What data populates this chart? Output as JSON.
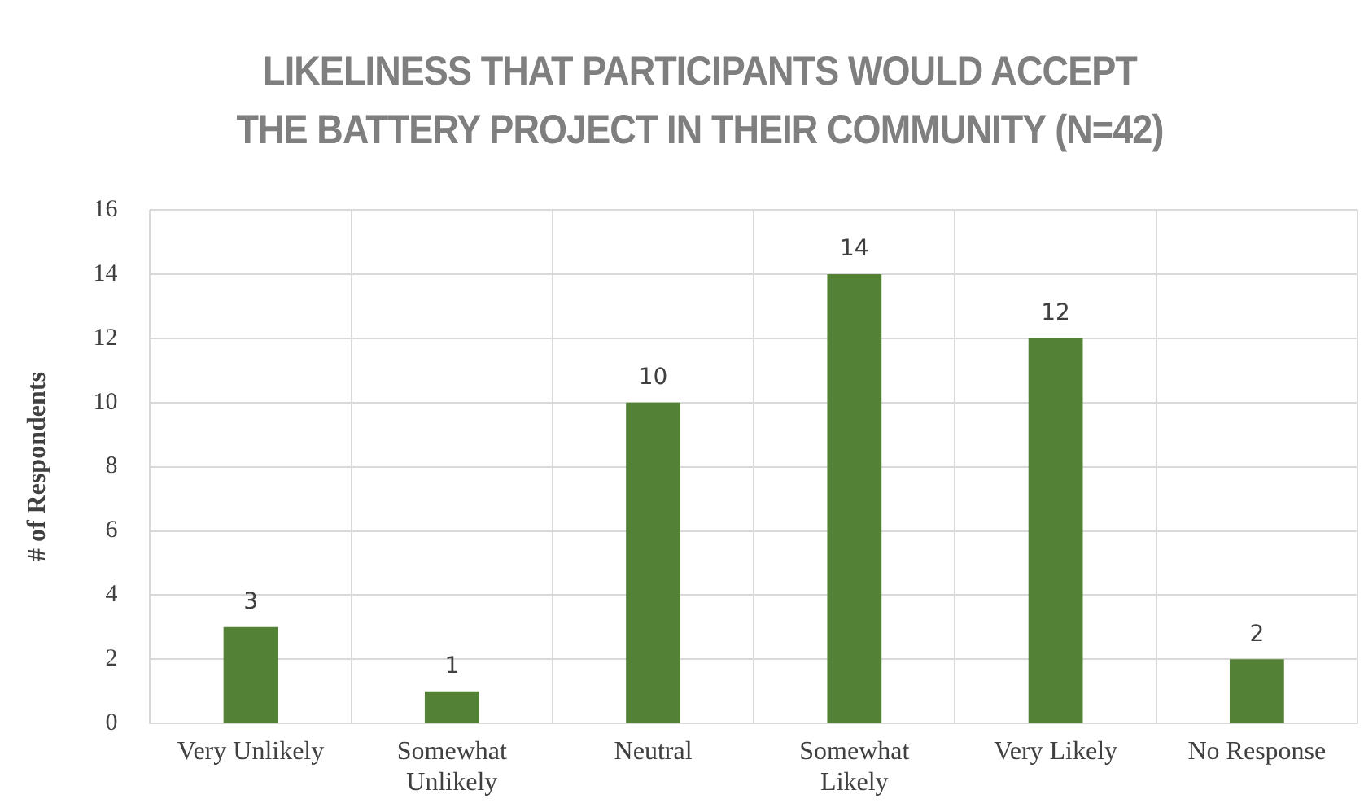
{
  "chart_data": {
    "type": "bar",
    "title": "LIKELINESS THAT PARTICIPANTS WOULD ACCEPT THE BATTERY PROJECT IN THEIR COMMUNITY (N=42)",
    "ylabel": "# of Respondents",
    "categories": [
      "Very Unlikely",
      "Somewhat Unlikely",
      "Neutral",
      "Somewhat Likely",
      "Very Likely",
      "No Response"
    ],
    "values": [
      3,
      1,
      10,
      14,
      12,
      2
    ],
    "color": "#538135",
    "ylim": [
      0,
      16
    ],
    "yticks": [
      0,
      2,
      4,
      6,
      8,
      10,
      12,
      14,
      16
    ],
    "grid": true,
    "data_labels": true,
    "legend": false
  }
}
